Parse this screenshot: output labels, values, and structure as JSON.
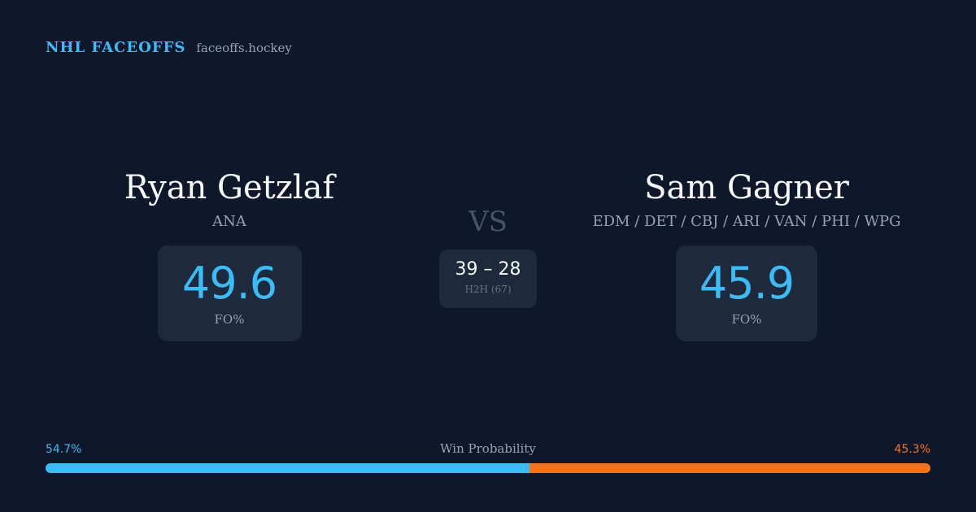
{
  "header": {
    "brand": "NHL FACEOFFS",
    "domain": "faceoffs.hockey"
  },
  "players": {
    "left": {
      "name": "Ryan Getzlaf",
      "team": "ANA",
      "fo_value": "49.6",
      "fo_label": "FO%"
    },
    "right": {
      "name": "Sam Gagner",
      "team": "EDM / DET / CBJ / ARI / VAN / PHI / WPG",
      "fo_value": "45.9",
      "fo_label": "FO%"
    }
  },
  "matchup": {
    "vs_label": "VS",
    "h2h_score": "39 – 28",
    "h2h_label": "H2H (67)"
  },
  "win_probability": {
    "title": "Win Probability",
    "left_label": "54.7%",
    "right_label": "45.3%",
    "left_value": 54.7,
    "right_value": 45.3
  },
  "colors": {
    "background": "#0f172a",
    "panel": "#1e293b",
    "accent_left": "#38bdf8",
    "accent_right": "#f97316",
    "muted_text": "#94a3b8"
  }
}
